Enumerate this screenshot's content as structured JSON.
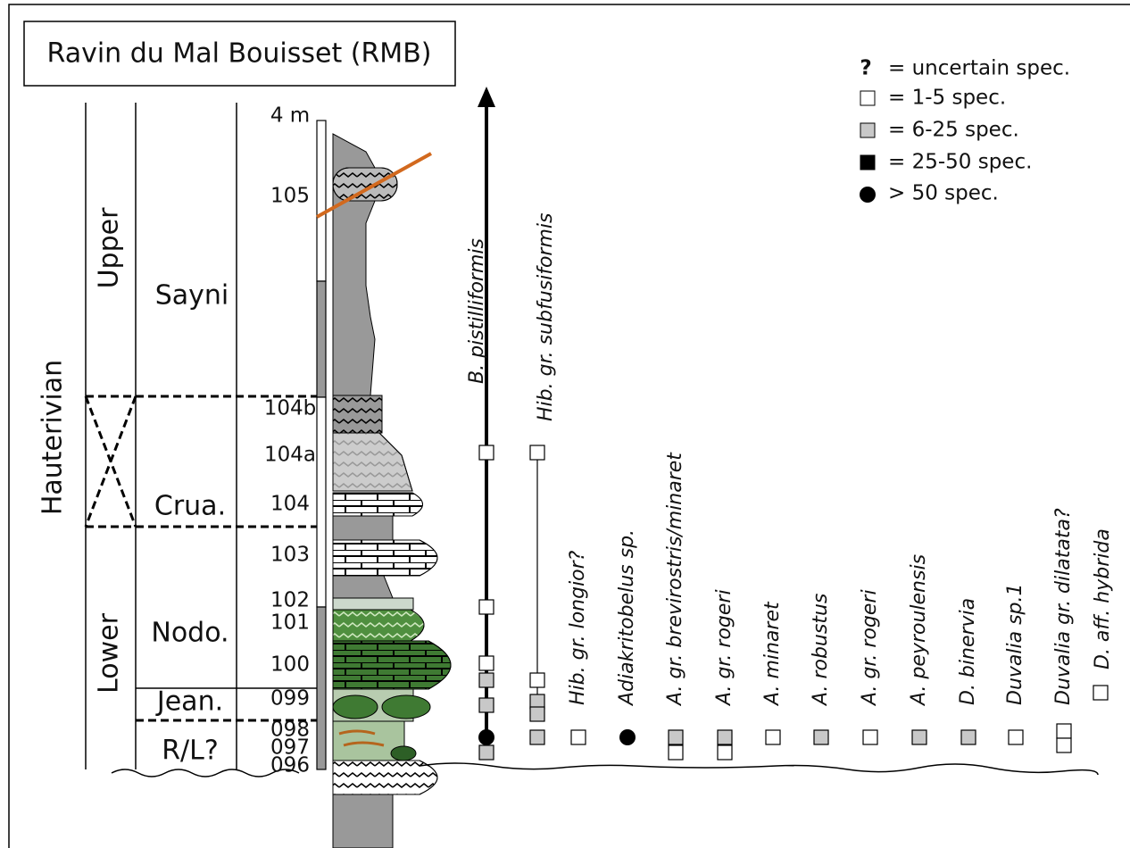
{
  "title": "Ravin du Mal Bouisset (RMB)",
  "legend": [
    {
      "symbol": "?",
      "label": "= uncertain spec."
    },
    {
      "label": "= 1-5 spec."
    },
    {
      "label": "= 6-25 spec."
    },
    {
      "label": "= 25-50 spec."
    },
    {
      "label": "> 50 spec."
    }
  ],
  "stage": "Hauterivian",
  "substages": [
    "Upper",
    "Lower"
  ],
  "zones": [
    "Sayni",
    "Crua.",
    "Nodo.",
    "Jean.",
    "R/L?"
  ],
  "scale_label": "4 m",
  "beds": [
    "105",
    "104b",
    "104a",
    "104",
    "103",
    "102",
    "101",
    "100",
    "099",
    "098",
    "097",
    "096"
  ],
  "taxa": [
    "B. pistilliformis",
    "Hib. gr. subfusiformis",
    "Hib. gr. longior?",
    "Adiakritobelus sp.",
    "A. gr. brevirostris/minaret",
    "A. gr. rogeri",
    "A. minaret",
    "A. robustus",
    "A. gr. rogeri",
    "A. peyroulensis",
    "D. binervia",
    "Duvalia sp.1",
    "Duvalia gr. dilatata?",
    "D. aff. hybrida"
  ]
}
